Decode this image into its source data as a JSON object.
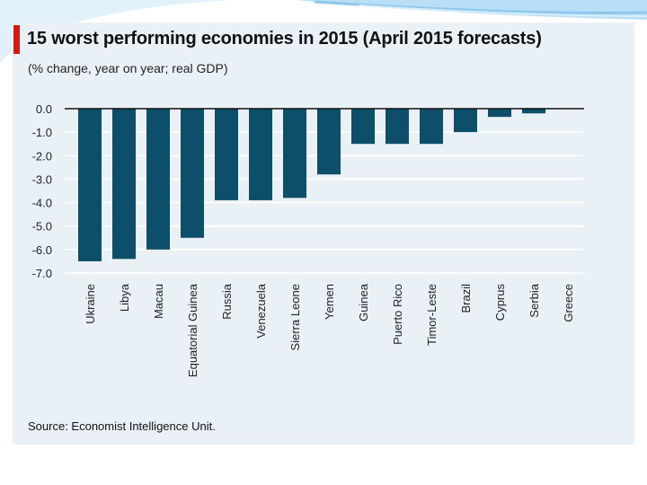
{
  "theme": {
    "bar_color": "#0d4f6b",
    "panel_bg": "#e9f1f6",
    "accent": "#e3120b",
    "deco_blue": "#8fc8ec"
  },
  "chart_data": {
    "type": "bar",
    "title": "15 worst performing economies in 2015 (April 2015 forecasts)",
    "subtitle": "(% change, year on year; real GDP)",
    "source": "Source: Economist Intelligence Unit.",
    "xlabel": "",
    "ylabel": "",
    "ylim": [
      -7.0,
      0.0
    ],
    "yticks": [
      "0.0",
      "-1.0",
      "-2.0",
      "-3.0",
      "-4.0",
      "-5.0",
      "-6.0",
      "-7.0"
    ],
    "grid": true,
    "legend": "none",
    "categories": [
      "Ukraine",
      "Libya",
      "Macau",
      "Equatorial Guinea",
      "Russia",
      "Venezuela",
      "Sierra Leone",
      "Yemen",
      "Guinea",
      "Puerto Rico",
      "Timor-Leste",
      "Brazil",
      "Cyprus",
      "Serbia",
      "Greece"
    ],
    "values": [
      -6.5,
      -6.4,
      -6.0,
      -5.5,
      -3.9,
      -3.9,
      -3.8,
      -2.8,
      -1.5,
      -1.5,
      -1.5,
      -1.0,
      -0.35,
      -0.2,
      0.0
    ]
  }
}
